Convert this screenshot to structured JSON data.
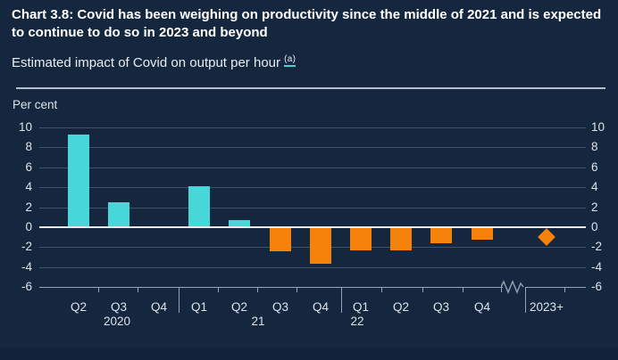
{
  "header": {
    "title": "Chart 3.8: Covid has been weighing on productivity since the middle of 2021 and is expected to continue to do so in 2023 and beyond",
    "subtitle": "Estimated impact of Covid on output per hour",
    "footnote_marker": "(a)"
  },
  "chart_data": {
    "type": "bar",
    "title": "Chart 3.8: Covid has been weighing on productivity since the middle of 2021 and is expected to continue to do so in 2023 and beyond",
    "subtitle": "Estimated impact of Covid on output per hour (a)",
    "ylabel": "Per cent",
    "ylim": [
      -6,
      10
    ],
    "yticks": [
      10,
      8,
      6,
      4,
      2,
      0,
      "-2",
      "-4",
      "-6"
    ],
    "ytick_values": [
      10,
      8,
      6,
      4,
      2,
      0,
      -2,
      -4,
      -6
    ],
    "grid": true,
    "dual_axis_labels": true,
    "quarter_labels": [
      "Q2",
      "Q3",
      "Q4",
      "Q1",
      "Q2",
      "Q3",
      "Q4",
      "Q1",
      "Q2",
      "Q3",
      "Q4"
    ],
    "categories": [
      "2020 Q2",
      "2020 Q3",
      "2020 Q4",
      "2021 Q1",
      "2021 Q2",
      "2021 Q3",
      "2021 Q4",
      "2022 Q1",
      "2022 Q2",
      "2022 Q3",
      "2022 Q4"
    ],
    "values": [
      9.3,
      2.5,
      0.0,
      4.1,
      0.7,
      -2.4,
      -3.7,
      -2.3,
      -2.3,
      -1.6,
      -1.3
    ],
    "year_labels": [
      "2020",
      "21",
      "22"
    ],
    "forecast_point": {
      "label": "2023+",
      "value": -1.0,
      "marker": "diamond"
    },
    "axis_break_before_forecast": true,
    "legend": "none",
    "colors": {
      "positive_bar": "#48D7D9",
      "negative_bar": "#F5820A",
      "forecast_marker": "#F5820A",
      "background": "#15273E",
      "gridline": "#40516A",
      "zero_line": "#E9EEF3",
      "axis": "#97A3B1",
      "tick_text": "#DCE3EB",
      "footnote_underline": "#45D5D8"
    }
  }
}
